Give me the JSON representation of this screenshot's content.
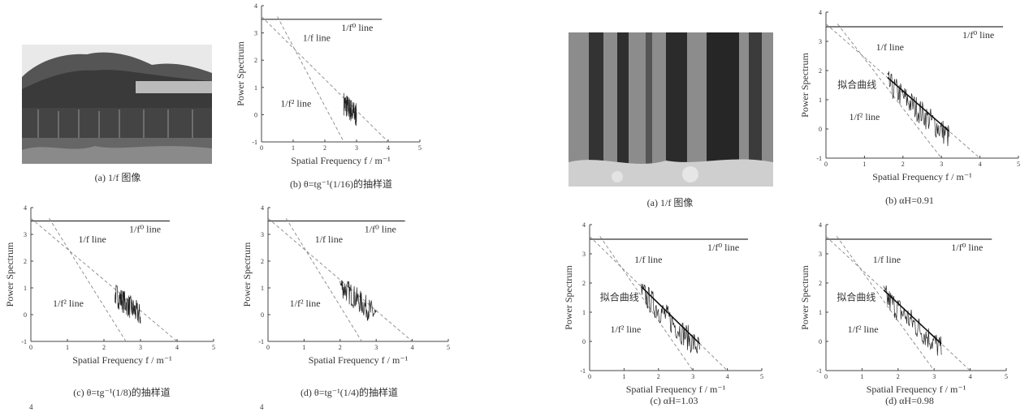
{
  "left_figure": {
    "photo": {
      "caption": "(a) 1/f 图像",
      "scene": "trees-over-water-photo"
    },
    "panels": [
      {
        "caption": "(b) θ=tg⁻¹(1/16)的抽样道",
        "fit_label": ""
      },
      {
        "caption": "(c) θ=tg⁻¹(1/8)的抽样道",
        "fit_label": ""
      },
      {
        "caption": "(d) θ=tg⁻¹(1/4)的抽样道",
        "fit_label": ""
      }
    ]
  },
  "right_figure": {
    "photo": {
      "caption": "(a) 1/f 图像",
      "scene": "forest-photo"
    },
    "panels": [
      {
        "caption": "(b) αH=0.91",
        "fit_label": "拟合曲线"
      },
      {
        "caption": "(c) αH=1.03",
        "fit_label": "拟合曲线"
      },
      {
        "caption": "(d) αH=0.98",
        "fit_label": "拟合曲线"
      }
    ]
  },
  "axes": {
    "ylabel": "Power Spectrum",
    "xlabel": "Spatial Frequency f / m⁻¹",
    "x_ticks": [
      "0",
      "1",
      "2",
      "3",
      "4",
      "5"
    ],
    "y_ticks": [
      "4",
      "3",
      "2",
      "1",
      "0",
      "-1"
    ]
  },
  "line_labels": {
    "f0": "1/f⁰ line",
    "f1": "1/f line",
    "f2": "1/f² line"
  },
  "stray_ticks": [
    "4",
    "4"
  ],
  "chart_data": [
    {
      "type": "line",
      "xlim": [
        0,
        5
      ],
      "ylim": [
        -1,
        4
      ],
      "series": [
        {
          "name": "1/f⁰ line",
          "x": [
            0,
            3.8
          ],
          "y": [
            3.5,
            3.5
          ]
        },
        {
          "name": "1/f line",
          "x": [
            0,
            4
          ],
          "y": [
            3.6,
            -1
          ]
        },
        {
          "name": "1/f² line",
          "x": [
            0.5,
            2.6
          ],
          "y": [
            3.6,
            -1
          ]
        }
      ]
    },
    {
      "type": "line",
      "xlim": [
        0,
        5
      ],
      "ylim": [
        -1,
        4
      ],
      "series": [
        {
          "name": "1/f⁰ line",
          "x": [
            0,
            3.8
          ],
          "y": [
            3.5,
            3.5
          ]
        },
        {
          "name": "1/f line",
          "x": [
            0,
            4
          ],
          "y": [
            3.6,
            -1
          ]
        },
        {
          "name": "1/f² line",
          "x": [
            0.5,
            2.6
          ],
          "y": [
            3.6,
            -1
          ]
        }
      ]
    },
    {
      "type": "line",
      "xlim": [
        0,
        5
      ],
      "ylim": [
        -1,
        4
      ],
      "series": [
        {
          "name": "1/f⁰ line",
          "x": [
            0,
            3.8
          ],
          "y": [
            3.5,
            3.5
          ]
        },
        {
          "name": "1/f line",
          "x": [
            0,
            4
          ],
          "y": [
            3.6,
            -1
          ]
        },
        {
          "name": "1/f² line",
          "x": [
            0.5,
            2.6
          ],
          "y": [
            3.6,
            -1
          ]
        }
      ]
    },
    {
      "type": "line",
      "xlim": [
        0,
        5
      ],
      "ylim": [
        -1,
        4
      ],
      "series": [
        {
          "name": "1/f⁰ line",
          "x": [
            0,
            4.6
          ],
          "y": [
            3.5,
            3.5
          ]
        },
        {
          "name": "1/f line",
          "x": [
            0,
            4
          ],
          "y": [
            3.6,
            -1
          ]
        },
        {
          "name": "1/f² line",
          "x": [
            0.3,
            3.0
          ],
          "y": [
            3.6,
            -1
          ]
        }
      ]
    },
    {
      "type": "line",
      "xlim": [
        0,
        5
      ],
      "ylim": [
        -1,
        4
      ],
      "series": [
        {
          "name": "1/f⁰ line",
          "x": [
            0,
            4.6
          ],
          "y": [
            3.5,
            3.5
          ]
        },
        {
          "name": "1/f line",
          "x": [
            0,
            4
          ],
          "y": [
            3.6,
            -1
          ]
        },
        {
          "name": "1/f² line",
          "x": [
            0.3,
            3.0
          ],
          "y": [
            3.6,
            -1
          ]
        }
      ]
    },
    {
      "type": "line",
      "xlim": [
        0,
        5
      ],
      "ylim": [
        -1,
        4
      ],
      "series": [
        {
          "name": "1/f⁰ line",
          "x": [
            0,
            4.6
          ],
          "y": [
            3.5,
            3.5
          ]
        },
        {
          "name": "1/f line",
          "x": [
            0,
            4
          ],
          "y": [
            3.6,
            -1
          ]
        },
        {
          "name": "1/f² line",
          "x": [
            0.3,
            3.0
          ],
          "y": [
            3.6,
            -1
          ]
        }
      ]
    }
  ]
}
